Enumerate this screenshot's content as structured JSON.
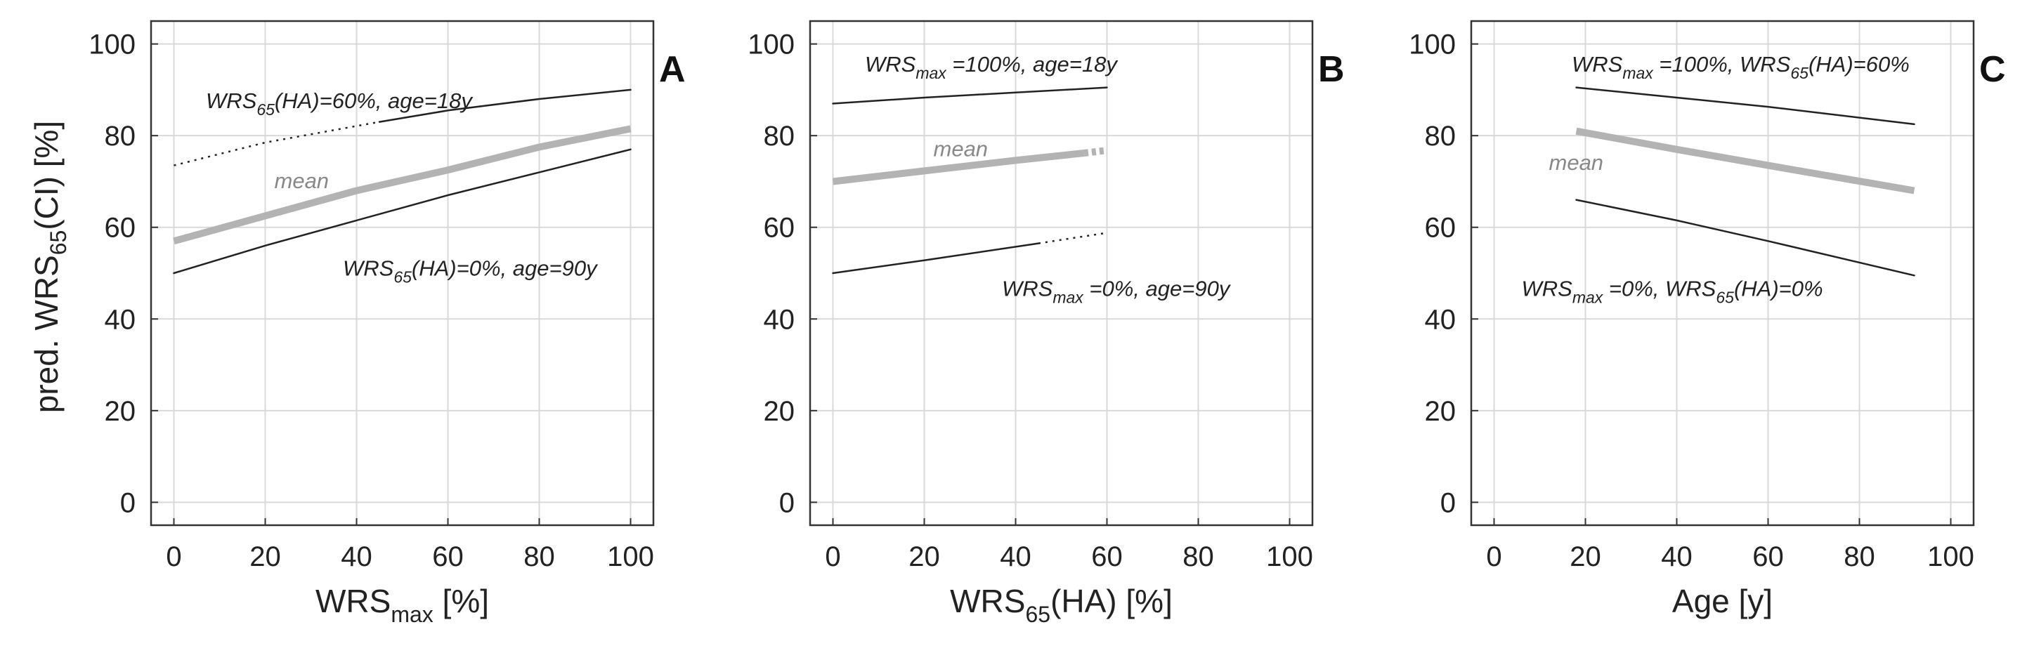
{
  "y_axis_label": {
    "main": "pred. WRS",
    "sub": "65",
    "tail": "(CI) [%]"
  },
  "chart_data": [
    {
      "type": "line",
      "panel_letter": "A",
      "xlabel": {
        "main": "WRS",
        "sub": "max",
        "tail": " [%]"
      },
      "xlim": [
        -5,
        105
      ],
      "ylim": [
        -5,
        105
      ],
      "xticks": [
        0,
        20,
        40,
        60,
        80,
        100
      ],
      "yticks": [
        0,
        20,
        40,
        60,
        80,
        100
      ],
      "grid": true,
      "series": [
        {
          "role": "upper",
          "x": [
            0,
            20,
            45,
            60,
            80,
            100
          ],
          "y": [
            73.5,
            78.5,
            83,
            85.5,
            88,
            90
          ],
          "dashed_until_x": 45
        },
        {
          "role": "mean",
          "name": "mean",
          "x": [
            0,
            20,
            40,
            60,
            80,
            100
          ],
          "y": [
            57,
            62.5,
            68,
            72.5,
            77.5,
            81.5
          ]
        },
        {
          "role": "lower",
          "x": [
            0,
            20,
            40,
            60,
            80,
            100
          ],
          "y": [
            50,
            56,
            61.5,
            67,
            72,
            77
          ]
        }
      ],
      "annotations": [
        {
          "role": "upper-label",
          "parts": [
            [
              "WRS",
              ""
            ],
            [
              "65",
              "sub"
            ],
            [
              "(HA)=60%,  age=18y",
              ""
            ]
          ],
          "x": 7,
          "y": 86
        },
        {
          "role": "mean-label",
          "parts": [
            [
              "mean",
              ""
            ]
          ],
          "x": 22,
          "y": 68.5
        },
        {
          "role": "lower-label",
          "parts": [
            [
              "WRS",
              ""
            ],
            [
              "65",
              "sub"
            ],
            [
              "(HA)=0%,  age=90y",
              ""
            ]
          ],
          "x": 37,
          "y": 49.5
        }
      ]
    },
    {
      "type": "line",
      "panel_letter": "B",
      "xlabel": {
        "main": "WRS",
        "sub": "65",
        "tail": "(HA) [%]"
      },
      "xlim": [
        -5,
        105
      ],
      "ylim": [
        -5,
        105
      ],
      "xticks": [
        0,
        20,
        40,
        60,
        80,
        100
      ],
      "yticks": [
        0,
        20,
        40,
        60,
        80,
        100
      ],
      "grid": true,
      "series": [
        {
          "role": "upper",
          "x": [
            0,
            20,
            40,
            60
          ],
          "y": [
            87,
            88.3,
            89.4,
            90.5
          ]
        },
        {
          "role": "mean",
          "name": "mean",
          "x": [
            0,
            20,
            40,
            55,
            60
          ],
          "y": [
            70,
            72.3,
            74.6,
            76.2,
            76.8
          ],
          "dashed_from_x": 55
        },
        {
          "role": "lower",
          "x": [
            0,
            20,
            45,
            60
          ],
          "y": [
            50,
            52.8,
            56.5,
            58.8
          ],
          "dashed_from_x": 45
        }
      ],
      "annotations": [
        {
          "role": "upper-label",
          "parts": [
            [
              "WRS",
              ""
            ],
            [
              "max",
              "sub"
            ],
            [
              " =100%,  age=18y",
              ""
            ]
          ],
          "x": 7,
          "y": 94
        },
        {
          "role": "mean-label",
          "parts": [
            [
              "mean",
              ""
            ]
          ],
          "x": 22,
          "y": 75.5
        },
        {
          "role": "lower-label",
          "parts": [
            [
              "WRS",
              ""
            ],
            [
              "max",
              "sub"
            ],
            [
              " =0%,  age=90y",
              ""
            ]
          ],
          "x": 37,
          "y": 45
        }
      ]
    },
    {
      "type": "line",
      "panel_letter": "C",
      "xlabel": {
        "main": "Age [y]",
        "sub": "",
        "tail": ""
      },
      "xlim": [
        -5,
        105
      ],
      "ylim": [
        -5,
        105
      ],
      "xticks": [
        0,
        20,
        40,
        60,
        80,
        100
      ],
      "yticks": [
        0,
        20,
        40,
        60,
        80,
        100
      ],
      "grid": true,
      "series": [
        {
          "role": "upper",
          "x": [
            18,
            40,
            60,
            92
          ],
          "y": [
            90.5,
            88.3,
            86.3,
            82.5
          ]
        },
        {
          "role": "mean",
          "name": "mean",
          "x": [
            18,
            40,
            60,
            92
          ],
          "y": [
            81,
            77,
            73.5,
            68
          ]
        },
        {
          "role": "lower",
          "x": [
            18,
            40,
            60,
            92
          ],
          "y": [
            66,
            61.5,
            57,
            49.5
          ]
        }
      ],
      "annotations": [
        {
          "role": "upper-label",
          "parts": [
            [
              "WRS",
              ""
            ],
            [
              "max",
              "sub"
            ],
            [
              " =100%,  WRS",
              ""
            ],
            [
              "65",
              "sub"
            ],
            [
              "(HA)=60%",
              ""
            ]
          ],
          "x": 17,
          "y": 94
        },
        {
          "role": "mean-label",
          "parts": [
            [
              "mean",
              ""
            ]
          ],
          "x": 12,
          "y": 72.5
        },
        {
          "role": "lower-label",
          "parts": [
            [
              "WRS",
              ""
            ],
            [
              "max",
              "sub"
            ],
            [
              " =0%,  WRS",
              ""
            ],
            [
              "65",
              "sub"
            ],
            [
              "(HA)=0%",
              ""
            ]
          ],
          "x": 6,
          "y": 45
        }
      ]
    }
  ],
  "colors": {
    "frame": "#333333",
    "grid": "#d9d9d9",
    "bound_line": "#222222",
    "mean_line": "#b3b3b3",
    "mean_text": "#888888",
    "text": "#222222"
  }
}
